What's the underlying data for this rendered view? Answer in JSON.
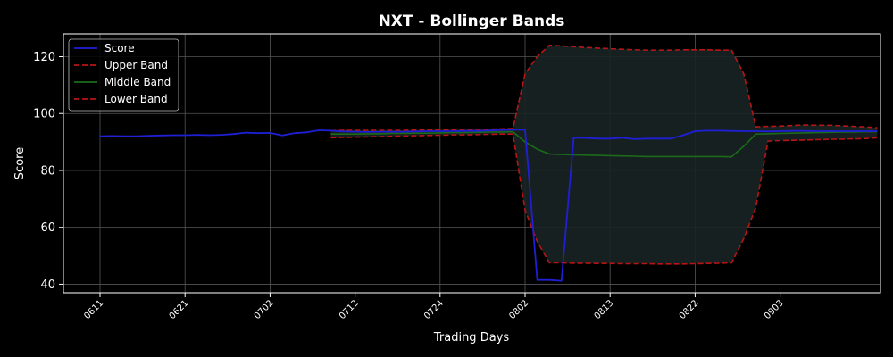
{
  "chart_data": {
    "type": "line",
    "title": "NXT - Bollinger Bands",
    "xlabel": "Trading Days",
    "ylabel": "Score",
    "ylim": [
      37,
      128
    ],
    "yticks": [
      40,
      60,
      80,
      100,
      120
    ],
    "grid": true,
    "legend_position": "top-left",
    "n_points": 65,
    "x_tick_labels": [
      {
        "index": 0,
        "label": "0611"
      },
      {
        "index": 7,
        "label": "0621"
      },
      {
        "index": 14,
        "label": "0702"
      },
      {
        "index": 21,
        "label": "0712"
      },
      {
        "index": 28,
        "label": "0724"
      },
      {
        "index": 35,
        "label": "0802"
      },
      {
        "index": 42,
        "label": "0813"
      },
      {
        "index": 49,
        "label": "0822"
      },
      {
        "index": 56,
        "label": "0903"
      }
    ],
    "colors": {
      "background": "#000000",
      "score": "#1f1fd6",
      "upper": "#b81414",
      "middle": "#1b6b1b",
      "lower": "#b81414",
      "fill": "#1a2424",
      "grid": "#555555"
    },
    "series": [
      {
        "name": "Score",
        "start_index": 0,
        "style": "solid",
        "values": [
          92.0,
          92.1,
          92.0,
          92.0,
          92.2,
          92.3,
          92.4,
          92.4,
          92.5,
          92.4,
          92.5,
          92.8,
          93.3,
          93.1,
          93.2,
          92.3,
          93.1,
          93.4,
          94.1,
          94.0,
          93.7,
          93.6,
          93.5,
          93.6,
          93.6,
          93.6,
          93.7,
          93.8,
          93.8,
          93.8,
          93.9,
          93.9,
          94.0,
          94.2,
          94.3,
          94.3,
          41.5,
          41.5,
          41.2,
          91.5,
          91.4,
          91.2,
          91.2,
          91.5,
          91.0,
          91.2,
          91.2,
          91.2,
          92.4,
          93.8,
          94.0,
          94.0,
          93.9,
          93.8,
          93.8,
          93.7,
          93.8,
          93.9,
          93.9,
          93.8,
          93.8,
          93.8,
          93.8,
          93.8,
          93.8
        ]
      },
      {
        "name": "Upper Band",
        "start_index": 19,
        "style": "dashed",
        "values": [
          94.0,
          94.1,
          94.1,
          94.1,
          94.1,
          94.1,
          94.1,
          94.2,
          94.2,
          94.3,
          94.3,
          94.3,
          94.4,
          94.5,
          94.6,
          94.7,
          114.0,
          120.0,
          124.0,
          123.8,
          123.5,
          123.2,
          123.0,
          122.8,
          122.6,
          122.4,
          122.3,
          122.3,
          122.3,
          122.4,
          122.4,
          122.4,
          122.3,
          122.3,
          114.0,
          95.3,
          95.5,
          95.6,
          95.8,
          96.0,
          95.9,
          95.9,
          95.7,
          95.5,
          95.3,
          95.0
        ]
      },
      {
        "name": "Middle Band",
        "start_index": 19,
        "style": "solid",
        "values": [
          92.8,
          92.8,
          92.8,
          92.9,
          92.9,
          93.0,
          93.0,
          93.1,
          93.1,
          93.2,
          93.3,
          93.3,
          93.4,
          93.5,
          93.5,
          93.6,
          90.0,
          87.5,
          85.8,
          85.6,
          85.5,
          85.4,
          85.3,
          85.2,
          85.1,
          85.0,
          84.9,
          84.9,
          84.9,
          84.9,
          84.9,
          84.9,
          84.9,
          84.8,
          88.5,
          92.8,
          92.9,
          93.0,
          93.1,
          93.2,
          93.3,
          93.4,
          93.5,
          93.5,
          93.6,
          93.6
        ]
      },
      {
        "name": "Lower Band",
        "start_index": 19,
        "style": "dashed",
        "values": [
          91.5,
          91.6,
          91.7,
          91.8,
          91.9,
          92.0,
          92.1,
          92.2,
          92.3,
          92.4,
          92.5,
          92.5,
          92.6,
          92.7,
          92.8,
          92.8,
          66.0,
          55.0,
          47.5,
          47.5,
          47.4,
          47.4,
          47.3,
          47.3,
          47.2,
          47.2,
          47.2,
          47.1,
          47.1,
          47.1,
          47.2,
          47.3,
          47.4,
          47.5,
          56.0,
          67.0,
          90.3,
          90.5,
          90.6,
          90.7,
          90.8,
          90.9,
          91.0,
          91.1,
          91.2,
          91.5
        ]
      }
    ]
  }
}
